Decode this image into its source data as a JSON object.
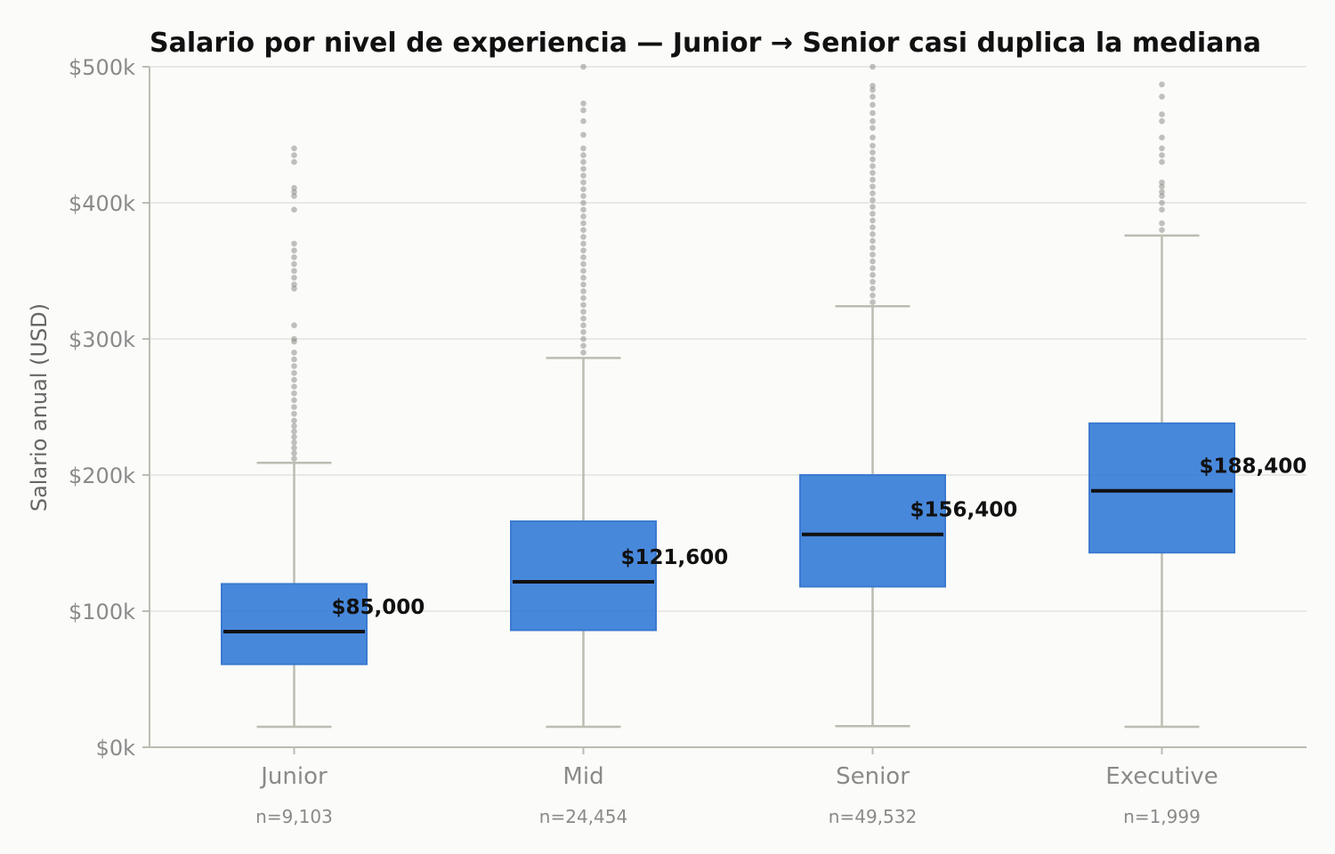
{
  "chart_data": {
    "type": "box",
    "title": "Salario por nivel de experiencia — Junior → Senior casi duplica la mediana",
    "xlabel": "",
    "ylabel": "Salario anual (USD)",
    "ylim": [
      0,
      500000
    ],
    "yticks": [
      0,
      100000,
      200000,
      300000,
      400000,
      500000
    ],
    "ytick_labels": [
      "$0k",
      "$100k",
      "$200k",
      "$300k",
      "$400k",
      "$500k"
    ],
    "grid": true,
    "colors": {
      "box_fill": "#3a7fd8",
      "box_edge": "#3b7ad0",
      "median": "#111111",
      "whisker": "#bcbcb2",
      "outlier": "#8e8e88",
      "grid": "#e2e2de",
      "axis": "#bcbcb2"
    },
    "categories": [
      "Junior",
      "Mid",
      "Senior",
      "Executive"
    ],
    "counts": [
      "n=9,103",
      "n=24,454",
      "n=49,532",
      "n=1,999"
    ],
    "median_labels": [
      "$85,000",
      "$121,600",
      "$156,400",
      "$188,400"
    ],
    "boxes": [
      {
        "category": "Junior",
        "whisker_low": 15000,
        "q1": 61000,
        "median": 85000,
        "q3": 120000,
        "whisker_high": 209000,
        "outliers": [
          212000,
          216000,
          220000,
          224000,
          228000,
          232000,
          236000,
          240000,
          245000,
          250000,
          255000,
          260000,
          265000,
          270000,
          275000,
          280000,
          285000,
          290000,
          298000,
          300000,
          310000,
          337000,
          340000,
          345000,
          350000,
          355000,
          360000,
          365000,
          370000,
          395000,
          405000,
          408000,
          411000,
          430000,
          435000,
          440000
        ]
      },
      {
        "category": "Mid",
        "whisker_low": 15000,
        "q1": 86000,
        "median": 121600,
        "q3": 166000,
        "whisker_high": 286000,
        "outliers": [
          290000,
          295000,
          300000,
          305000,
          310000,
          315000,
          320000,
          325000,
          330000,
          335000,
          340000,
          345000,
          350000,
          355000,
          360000,
          365000,
          370000,
          375000,
          380000,
          385000,
          390000,
          395000,
          400000,
          405000,
          410000,
          415000,
          420000,
          425000,
          430000,
          435000,
          440000,
          450000,
          460000,
          468000,
          473000,
          500000
        ]
      },
      {
        "category": "Senior",
        "whisker_low": 15500,
        "q1": 118000,
        "median": 156400,
        "q3": 200000,
        "whisker_high": 324000,
        "outliers": [
          327000,
          332000,
          337000,
          342000,
          347000,
          352000,
          357000,
          362000,
          367000,
          372000,
          377000,
          382000,
          387000,
          392000,
          397000,
          402000,
          407000,
          412000,
          417000,
          422000,
          427000,
          432000,
          437000,
          442000,
          448000,
          455000,
          460000,
          466000,
          472000,
          478000,
          483000,
          486000,
          500000
        ]
      },
      {
        "category": "Executive",
        "whisker_low": 15000,
        "q1": 143000,
        "median": 188400,
        "q3": 238000,
        "whisker_high": 376000,
        "outliers": [
          380000,
          385000,
          395000,
          400000,
          405000,
          408000,
          412000,
          415000,
          430000,
          435000,
          440000,
          448000,
          460000,
          465000,
          478000,
          487000
        ]
      }
    ]
  }
}
